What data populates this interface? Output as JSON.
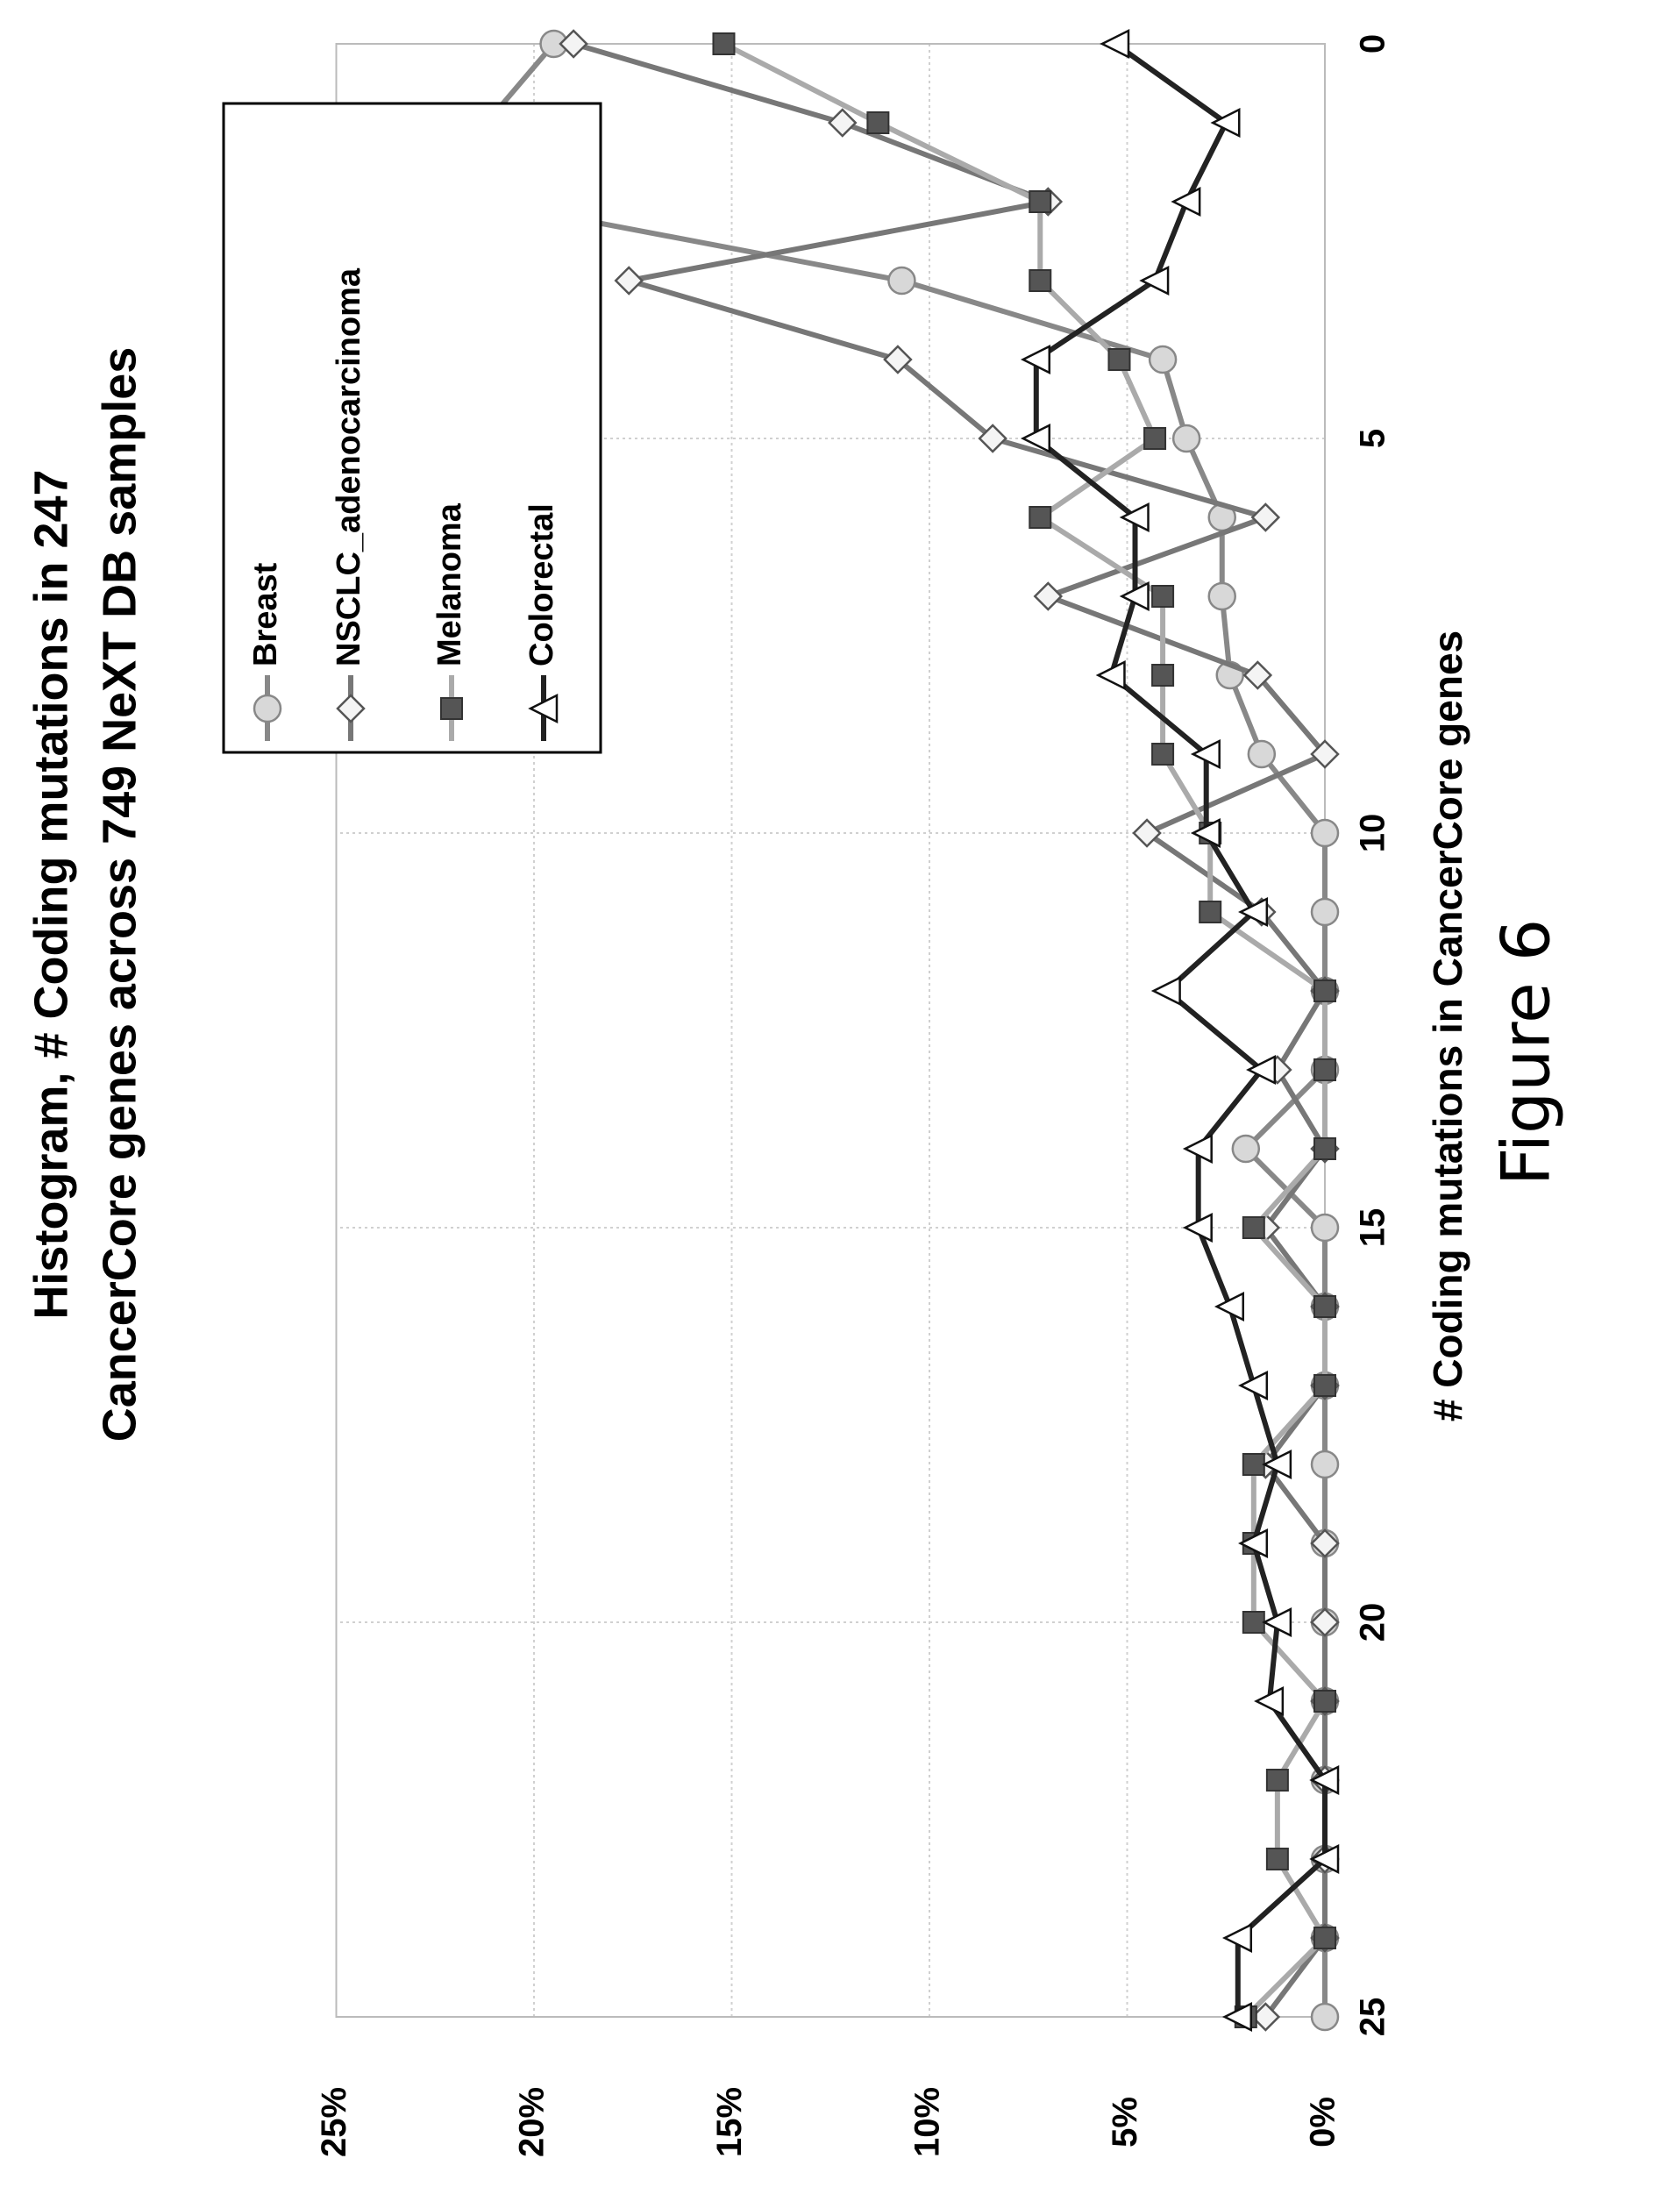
{
  "figure_label": "Figure 6",
  "chart_data": {
    "type": "line",
    "title_lines": [
      "Histogram, # Coding mutations in 247",
      "CancerCore genes across 749 NeXT DB samples"
    ],
    "xlabel": "# Coding mutations in CancerCore genes",
    "ylabel": "",
    "xlim": [
      0,
      25
    ],
    "ylim": [
      0,
      25
    ],
    "x_ticks": [
      "0",
      "5",
      "10",
      "15",
      "20",
      "25"
    ],
    "y_ticks": [
      "0%",
      "5%",
      "10%",
      "15%",
      "20%",
      "25%"
    ],
    "grid": true,
    "legend_position": "top-right",
    "x": [
      0,
      1,
      2,
      3,
      4,
      5,
      6,
      7,
      8,
      9,
      10,
      11,
      12,
      13,
      14,
      15,
      16,
      17,
      18,
      19,
      20,
      21,
      22,
      23,
      24,
      25
    ],
    "series": [
      {
        "name": "Breast",
        "color": "#888888",
        "marker": "circle",
        "values": [
          19.5,
          21.2,
          21.2,
          10.7,
          4.1,
          3.5,
          2.6,
          2.6,
          2.4,
          1.6,
          0,
          0,
          0,
          0,
          2.0,
          0,
          0,
          0,
          0,
          0,
          0,
          0,
          0,
          0,
          0,
          0
        ]
      },
      {
        "name": "NSCLC_adenocarcinoma",
        "color": "#777777",
        "marker": "diamond",
        "values": [
          19.0,
          12.2,
          7.0,
          17.6,
          10.8,
          8.4,
          1.5,
          7.0,
          1.7,
          0,
          4.5,
          1.6,
          0,
          1.2,
          0,
          1.5,
          0,
          0,
          1.5,
          0,
          0,
          0,
          0,
          0,
          0,
          1.5
        ]
      },
      {
        "name": "Melanoma",
        "color": "#aaaaaa",
        "marker": "square",
        "values": [
          15.2,
          11.3,
          7.2,
          7.2,
          5.2,
          4.3,
          7.2,
          4.1,
          4.1,
          4.1,
          2.9,
          2.9,
          0,
          0,
          0,
          1.8,
          0,
          0,
          1.8,
          1.8,
          1.8,
          0,
          1.2,
          1.2,
          0,
          2.0
        ]
      },
      {
        "name": "Colorectal",
        "color": "#222222",
        "marker": "triangle",
        "values": [
          5.3,
          2.5,
          3.5,
          4.3,
          7.3,
          7.3,
          4.8,
          4.8,
          5.4,
          3.0,
          3.0,
          1.8,
          4.0,
          1.6,
          3.2,
          3.2,
          2.4,
          1.8,
          1.2,
          1.8,
          1.2,
          1.4,
          0,
          0,
          2.2,
          2.2
        ]
      }
    ]
  }
}
